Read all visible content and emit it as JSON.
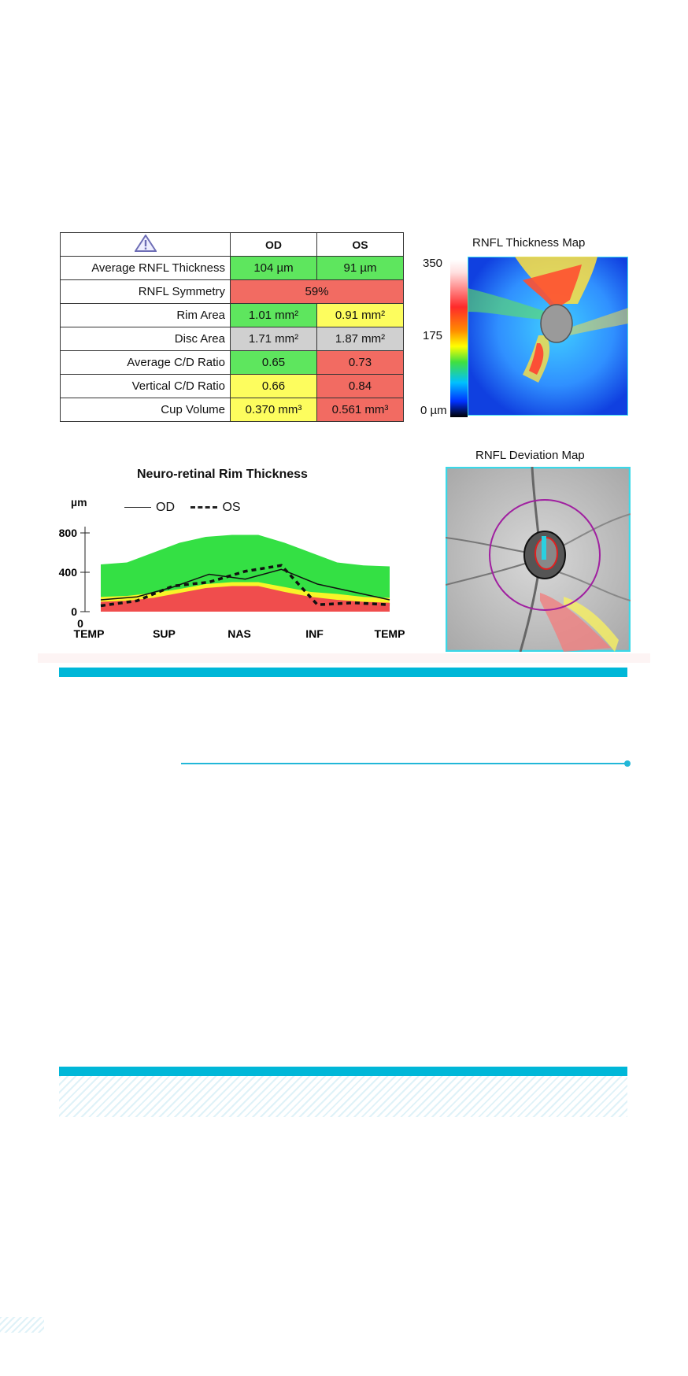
{
  "table": {
    "headers": {
      "od": "OD",
      "os": "OS"
    },
    "rows": [
      {
        "label": "Average RNFL Thickness",
        "od": "104 µm",
        "os": "91 µm",
        "od_status": "green",
        "os_status": "green"
      },
      {
        "label": "RNFL Symmetry",
        "combined": "59%",
        "status": "red"
      },
      {
        "label": "Rim Area",
        "od": "1.01 mm²",
        "os": "0.91 mm²",
        "od_status": "green",
        "os_status": "yellow"
      },
      {
        "label": "Disc Area",
        "od": "1.71 mm²",
        "os": "1.87 mm²",
        "od_status": "gray",
        "os_status": "gray"
      },
      {
        "label": "Average C/D Ratio",
        "od": "0.65",
        "os": "0.73",
        "od_status": "green",
        "os_status": "red"
      },
      {
        "label": "Vertical C/D Ratio",
        "od": "0.66",
        "os": "0.84",
        "od_status": "yellow",
        "os_status": "red"
      },
      {
        "label": "Cup Volume",
        "od": "0.370 mm³",
        "os": "0.561 mm³",
        "od_status": "yellow",
        "os_status": "red"
      }
    ]
  },
  "thickness_map": {
    "title": "RNFL Thickness Map",
    "scale": {
      "max": "350",
      "mid": "175",
      "min": "0 µm"
    }
  },
  "deviation_map": {
    "title": "RNFL Deviation Map"
  },
  "chart_data": {
    "type": "line",
    "title": "Neuro-retinal Rim Thickness",
    "ylabel": "µm",
    "ylim": [
      0,
      800
    ],
    "yticks": [
      "800",
      "400",
      "0"
    ],
    "zero_label": "0",
    "categories": [
      "TEMP",
      "SUP",
      "NAS",
      "INF",
      "TEMP"
    ],
    "legend": {
      "od": "OD",
      "os": "OS"
    },
    "bands": {
      "upper_normal": [
        480,
        500,
        600,
        700,
        760,
        780,
        780,
        700,
        600,
        500,
        470,
        460
      ],
      "yellow_top": [
        150,
        160,
        190,
        230,
        280,
        300,
        300,
        250,
        200,
        180,
        150,
        140
      ],
      "red_top": [
        100,
        110,
        140,
        190,
        240,
        260,
        260,
        200,
        150,
        120,
        100,
        90
      ]
    },
    "series": [
      {
        "name": "OD",
        "x": [
          0,
          0.5,
          1,
          1.5,
          2,
          2.5,
          3,
          3.5,
          4
        ],
        "values": [
          120,
          150,
          250,
          380,
          330,
          430,
          280,
          200,
          120
        ]
      },
      {
        "name": "OS",
        "x": [
          0,
          0.5,
          1,
          1.5,
          2,
          2.5,
          3,
          3.5,
          4
        ],
        "values": [
          60,
          110,
          260,
          300,
          410,
          470,
          70,
          90,
          70
        ]
      }
    ],
    "colors": {
      "green": "#34e044",
      "yellow": "#f8f428",
      "red": "#f04d4d"
    }
  }
}
